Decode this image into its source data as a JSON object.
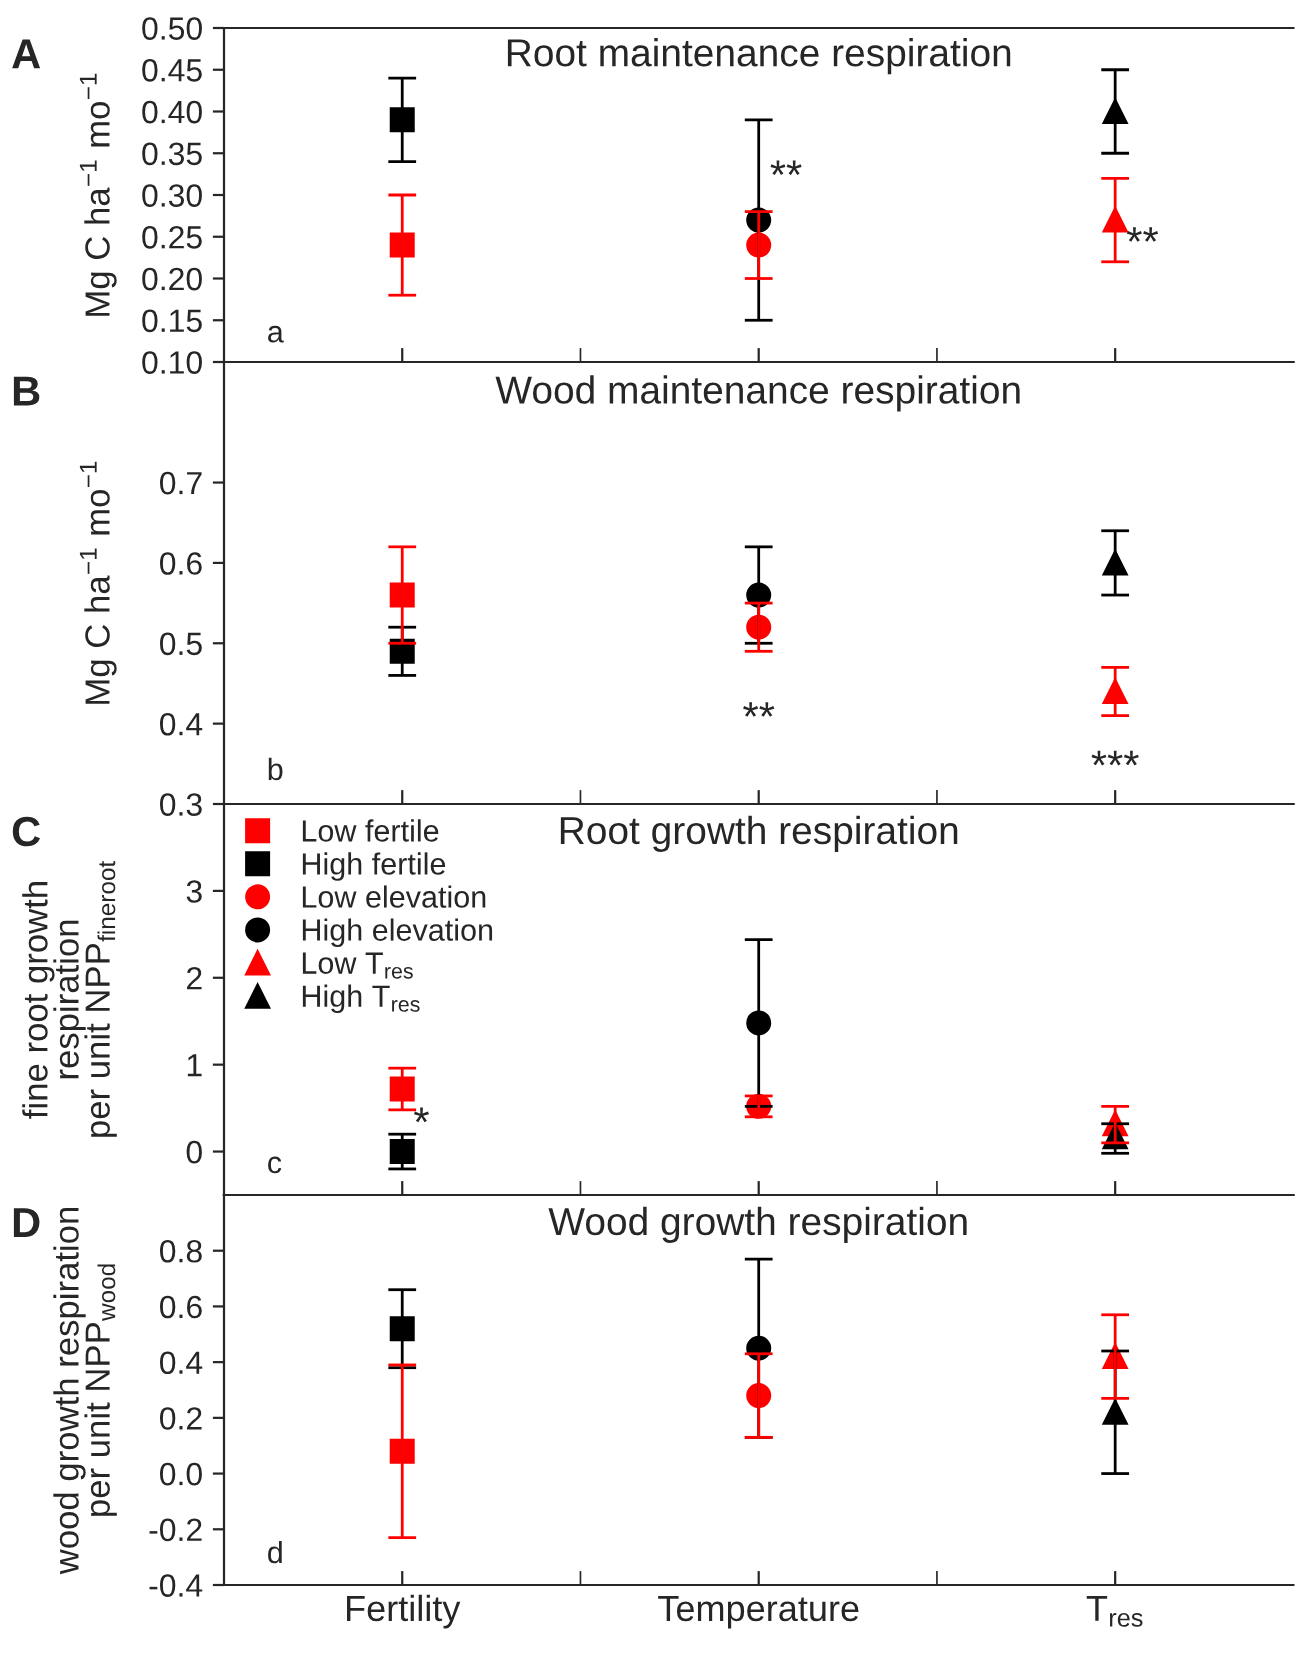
{
  "chart_data": [
    {
      "type": "scatter",
      "title": "Root maintenance respiration",
      "ylabel": "Mg C ha$^{−1}$ mo$^{−1}$",
      "categories": [
        "Fertility",
        "Temperature",
        "T$_{res}$"
      ],
      "ylim": [
        0.1,
        0.5
      ],
      "yticks": [
        {
          "value": 0.1,
          "label": "0.10"
        },
        0.15,
        {
          "value": 0.2,
          "label": "0.20"
        },
        0.25,
        {
          "value": 0.3,
          "label": "0.30"
        },
        0.35,
        {
          "value": 0.4,
          "label": "0.40"
        },
        0.45,
        {
          "value": 0.5,
          "label": "0.50"
        }
      ],
      "tick_labels": "y",
      "legend": false,
      "annotations": [
        "A",
        "a",
        {
          "text": "**",
          "x": "Temperature",
          "y": 0.32
        },
        {
          "text": "**",
          "x": "T$_{res}$",
          "y": 0.24
        }
      ],
      "series": [
        {
          "color": "#ff0000",
          "marker": "square",
          "values": [
            0.24,
            null,
            null
          ],
          "errors": [
            [
              0.18,
              0.3
            ],
            null,
            null
          ]
        },
        {
          "color": "#000000",
          "marker": "square",
          "values": [
            0.39,
            null,
            null
          ],
          "errors": [
            [
              0.34,
              0.44
            ],
            null,
            null
          ]
        },
        {
          "color": "#ff0000",
          "marker": "circle",
          "values": [
            null,
            0.24,
            null
          ],
          "errors": [
            null,
            [
              0.2,
              0.28
            ],
            null
          ]
        },
        {
          "color": "#000000",
          "marker": "circle",
          "values": [
            null,
            0.27,
            null
          ],
          "errors": [
            null,
            [
              0.15,
              0.39
            ],
            null
          ]
        },
        {
          "color": "#ff0000",
          "marker": "triangle",
          "values": [
            null,
            null,
            0.27
          ],
          "errors": [
            null,
            null,
            [
              0.22,
              0.32
            ]
          ]
        },
        {
          "color": "#000000",
          "marker": "triangle",
          "values": [
            null,
            null,
            0.4
          ],
          "errors": [
            null,
            null,
            [
              0.35,
              0.45
            ]
          ]
        }
      ]
    },
    {
      "type": "scatter",
      "title": "Wood maintenance respiration",
      "ylabel": "Mg C ha$^{−1}$ mo$^{−1}$",
      "categories": [
        "Fertility",
        "Temperature",
        "T$_{res}$"
      ],
      "ylim": [
        0.3,
        0.85
      ],
      "yticks": [
        0.3,
        0.4,
        0.5,
        0.6,
        0.7
      ],
      "tick_labels": "y",
      "legend": false,
      "annotations": [
        "B",
        "b",
        "**",
        "***"
      ],
      "series": [
        {
          "color": "#ff0000",
          "marker": "square",
          "values": [
            0.56,
            null,
            null
          ],
          "errors": [
            [
              0.5,
              0.62
            ],
            null,
            null
          ]
        },
        {
          "color": "#000000",
          "marker": "square",
          "values": [
            0.49,
            null,
            null
          ],
          "errors": [
            [
              0.46,
              0.52
            ],
            null,
            null
          ]
        },
        {
          "color": "#ff0000",
          "marker": "circle",
          "values": [
            null,
            0.52,
            null
          ],
          "errors": [
            null,
            [
              0.49,
              0.55
            ],
            null
          ]
        },
        {
          "color": "#000000",
          "marker": "circle",
          "values": [
            null,
            0.56,
            null
          ],
          "errors": [
            null,
            [
              0.5,
              0.62
            ],
            null
          ]
        },
        {
          "color": "#ff0000",
          "marker": "triangle",
          "values": [
            null,
            null,
            0.44
          ],
          "errors": [
            null,
            null,
            [
              0.41,
              0.47
            ]
          ]
        },
        {
          "color": "#000000",
          "marker": "triangle",
          "values": [
            null,
            null,
            0.6
          ],
          "errors": [
            null,
            null,
            [
              0.56,
              0.64
            ]
          ]
        }
      ]
    },
    {
      "type": "scatter",
      "title": "Root growth respiration",
      "ylabel": "fine root growth\nrespiration\nper unit NPP$_{fineroot}$",
      "categories": [
        "Fertility",
        "Temperature",
        "T$_{res}$"
      ],
      "ylim": [
        -0.5,
        4
      ],
      "yticks": [
        0,
        1,
        2,
        3
      ],
      "tick_labels": "y",
      "legend": "top left",
      "annotations": [
        "C",
        "c",
        {
          "text": "*",
          "x": "Fertility",
          "y": 0.3
        }
      ],
      "series": [
        {
          "name": "Low fertile",
          "color": "#ff0000",
          "marker": "square",
          "values": [
            0.72,
            null,
            null
          ],
          "errors": [
            [
              0.48,
              0.96
            ],
            null,
            null
          ]
        },
        {
          "name": "High fertile",
          "color": "#000000",
          "marker": "square",
          "values": [
            0.0,
            null,
            null
          ],
          "errors": [
            [
              -0.2,
              0.2
            ],
            null,
            null
          ]
        },
        {
          "name": "Low elevation",
          "color": "#ff0000",
          "marker": "circle",
          "values": [
            null,
            0.52,
            null
          ],
          "errors": [
            null,
            [
              0.4,
              0.64
            ],
            null
          ]
        },
        {
          "name": "High elevation",
          "color": "#000000",
          "marker": "circle",
          "values": [
            null,
            1.48,
            null
          ],
          "errors": [
            null,
            [
              0.52,
              2.44
            ],
            null
          ]
        },
        {
          "name": "Low T$_{res}$",
          "color": "#ff0000",
          "marker": "triangle",
          "values": [
            null,
            null,
            0.32
          ],
          "errors": [
            null,
            null,
            [
              0.1,
              0.52
            ]
          ]
        },
        {
          "name": "High T$_{res}$",
          "color": "#000000",
          "marker": "triangle",
          "values": [
            null,
            null,
            0.17
          ],
          "errors": [
            null,
            null,
            [
              -0.02,
              0.32
            ]
          ]
        }
      ]
    },
    {
      "type": "scatter",
      "title": "Wood growth respiration",
      "ylabel": "wood growth respiration\nper unit NPP$_{wood}$",
      "categories": [
        "Fertility",
        "Temperature",
        "T$_{res}$"
      ],
      "ylim": [
        -0.4,
        1.0
      ],
      "yticks": [
        -0.4,
        -0.2,
        {
          "value": 0,
          "label": "0.0"
        },
        0.2,
        0.4,
        0.6,
        0.8
      ],
      "legend": false,
      "annotations": [
        "D",
        "d"
      ],
      "series": [
        {
          "color": "#ff0000",
          "marker": "square",
          "values": [
            0.08,
            null,
            null
          ],
          "errors": [
            [
              -0.23,
              0.39
            ],
            null,
            null
          ]
        },
        {
          "color": "#000000",
          "marker": "square",
          "values": [
            0.52,
            null,
            null
          ],
          "errors": [
            [
              0.38,
              0.66
            ],
            null,
            null
          ]
        },
        {
          "color": "#ff0000",
          "marker": "circle",
          "values": [
            null,
            0.28,
            null
          ],
          "errors": [
            null,
            [
              0.13,
              0.43
            ],
            null
          ]
        },
        {
          "color": "#000000",
          "marker": "circle",
          "values": [
            null,
            0.45,
            null
          ],
          "errors": [
            null,
            [
              0.13,
              0.77
            ],
            null
          ]
        },
        {
          "color": "#ff0000",
          "marker": "triangle",
          "values": [
            null,
            null,
            0.42
          ],
          "errors": [
            null,
            null,
            [
              0.27,
              0.57
            ]
          ]
        },
        {
          "color": "#000000",
          "marker": "triangle",
          "values": [
            null,
            null,
            0.22
          ],
          "errors": [
            null,
            null,
            [
              0.0,
              0.44
            ]
          ]
        }
      ]
    }
  ]
}
